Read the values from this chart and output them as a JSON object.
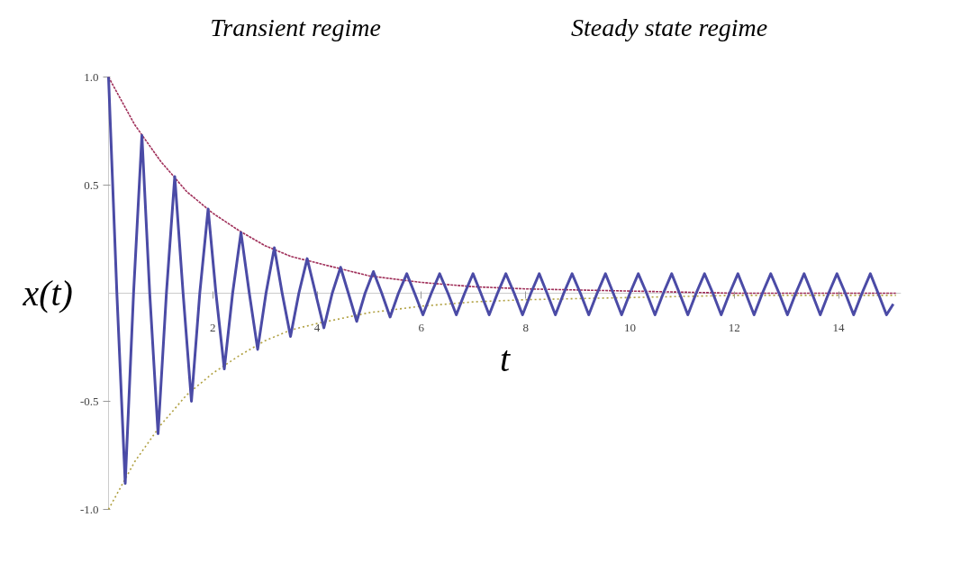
{
  "chart_data": {
    "type": "line",
    "xlabel": "t",
    "ylabel": "x(t)",
    "xlim": [
      0,
      15.2
    ],
    "ylim": [
      -1.0,
      1.0
    ],
    "xticks": [
      2,
      4,
      6,
      8,
      10,
      12,
      14
    ],
    "yticks": [
      {
        "value": -1.0,
        "label": "-1.0"
      },
      {
        "value": -0.5,
        "label": "-0.5"
      },
      {
        "value": 0.5,
        "label": "0.5"
      },
      {
        "value": 1.0,
        "label": "1.0"
      }
    ],
    "grid": false,
    "annotations": [
      "Transient regime",
      "Steady state regime"
    ],
    "series": [
      {
        "color": "#4b4ba6",
        "line_style": "solid",
        "x": [
          0,
          0.16,
          0.32,
          0.48,
          0.64,
          0.79,
          0.95,
          1.11,
          1.27,
          1.43,
          1.59,
          1.75,
          1.91,
          2.06,
          2.22,
          2.38,
          2.54,
          2.7,
          2.86,
          3.02,
          3.18,
          3.33,
          3.49,
          3.65,
          3.81,
          3.97,
          4.13,
          4.29,
          4.45,
          4.6,
          4.76,
          4.92,
          5.08,
          5.24,
          5.4,
          5.56,
          5.72,
          5.87,
          6.03,
          6.19,
          6.35,
          6.51,
          6.67,
          6.83,
          6.99,
          7.14,
          7.3,
          7.46,
          7.62,
          7.78,
          7.94,
          8.1,
          8.26,
          8.41,
          8.57,
          8.73,
          8.89,
          9.05,
          9.21,
          9.37,
          9.53,
          9.68,
          9.84,
          10.0,
          10.16,
          10.32,
          10.48,
          10.64,
          10.8,
          10.95,
          11.11,
          11.27,
          11.43,
          11.59,
          11.75,
          11.91,
          12.07,
          12.22,
          12.38,
          12.54,
          12.7,
          12.86,
          13.02,
          13.18,
          13.34,
          13.49,
          13.65,
          13.81,
          13.97,
          14.13,
          14.29,
          14.45,
          14.61,
          14.76,
          14.92,
          15.05
        ],
        "values": [
          1.0,
          0,
          -0.88,
          0,
          0.73,
          0,
          -0.65,
          0,
          0.54,
          0,
          -0.5,
          0,
          0.39,
          0,
          -0.35,
          0,
          0.28,
          0,
          -0.26,
          0,
          0.21,
          0,
          -0.2,
          0,
          0.16,
          0,
          -0.16,
          0,
          0.12,
          0,
          -0.13,
          0,
          0.1,
          0,
          -0.11,
          0,
          0.09,
          0,
          -0.1,
          0,
          0.09,
          0,
          -0.1,
          0,
          0.09,
          0,
          -0.1,
          0,
          0.09,
          0,
          -0.1,
          0,
          0.09,
          0,
          -0.1,
          0,
          0.09,
          0,
          -0.1,
          0,
          0.09,
          0,
          -0.1,
          0,
          0.09,
          0,
          -0.1,
          0,
          0.09,
          0,
          -0.1,
          0,
          0.09,
          0,
          -0.1,
          0,
          0.09,
          0,
          -0.1,
          0,
          0.09,
          0,
          -0.1,
          0,
          0.09,
          0,
          -0.1,
          0,
          0.09,
          0,
          -0.1,
          0,
          0.09,
          0,
          -0.1,
          -0.05
        ]
      },
      {
        "color": "#a0305a",
        "line_style": "dashed",
        "x": [
          0,
          0.5,
          1,
          1.5,
          2,
          2.5,
          3,
          3.5,
          4,
          5,
          6,
          7,
          8,
          10,
          12,
          15.1
        ],
        "values": [
          1.0,
          0.78,
          0.61,
          0.47,
          0.37,
          0.29,
          0.22,
          0.17,
          0.14,
          0.08,
          0.05,
          0.03,
          0.02,
          0.01,
          0.0,
          0.0
        ]
      },
      {
        "color": "#b0a040",
        "line_style": "dotted",
        "x": [
          0,
          0.5,
          1,
          1.5,
          2,
          2.5,
          3,
          3.5,
          4,
          5,
          6,
          7,
          8,
          10,
          12,
          15.1
        ],
        "values": [
          -1.0,
          -0.78,
          -0.61,
          -0.47,
          -0.37,
          -0.29,
          -0.22,
          -0.17,
          -0.14,
          -0.09,
          -0.06,
          -0.04,
          -0.03,
          -0.02,
          -0.01,
          -0.01
        ]
      }
    ]
  }
}
